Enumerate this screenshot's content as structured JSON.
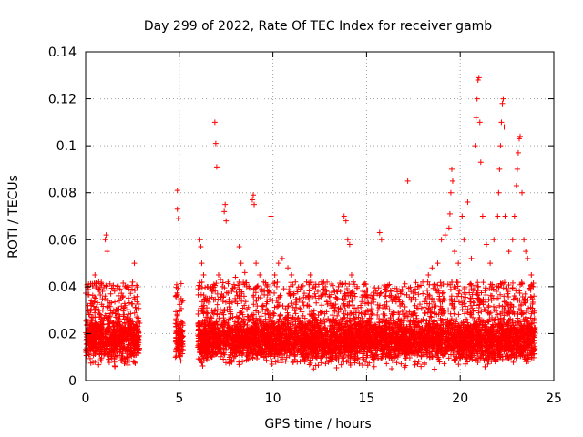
{
  "chart_data": {
    "type": "scatter",
    "title": "Day 299 of 2022, Rate Of TEC Index for receiver gamb",
    "xlabel": "GPS time / hours",
    "ylabel": "ROTI / TECUs",
    "xlim": [
      0,
      25
    ],
    "ylim": [
      0,
      0.14
    ],
    "xticks": [
      0,
      5,
      10,
      15,
      20,
      25
    ],
    "xtick_labels": [
      "0",
      "5",
      "10",
      "15",
      "20",
      "25"
    ],
    "yticks": [
      0,
      0.02,
      0.04,
      0.06,
      0.08,
      0.1,
      0.12,
      0.14
    ],
    "ytick_labels": [
      "0",
      "0.02",
      "0.04",
      "0.06",
      "0.08",
      "0.1",
      "0.12",
      "0.14"
    ],
    "grid": true,
    "marker": "+",
    "marker_color": "#ff0000",
    "series": [
      {
        "name": "ROTI",
        "dense_band": {
          "segments": [
            [
              0.0,
              2.9
            ],
            [
              4.8,
              5.2
            ],
            [
              6.0,
              24.0
            ]
          ],
          "ymin": 0.004,
          "ymax": 0.028
        },
        "points": [
          [
            0.1,
            0.03
          ],
          [
            0.3,
            0.034
          ],
          [
            0.5,
            0.045
          ],
          [
            0.7,
            0.042
          ],
          [
            0.9,
            0.038
          ],
          [
            1.05,
            0.06
          ],
          [
            1.1,
            0.062
          ],
          [
            1.15,
            0.055
          ],
          [
            1.3,
            0.033
          ],
          [
            1.5,
            0.03
          ],
          [
            1.8,
            0.034
          ],
          [
            2.0,
            0.036
          ],
          [
            2.2,
            0.04
          ],
          [
            2.3,
            0.039
          ],
          [
            2.6,
            0.05
          ],
          [
            2.7,
            0.03
          ],
          [
            4.9,
            0.081
          ],
          [
            4.9,
            0.073
          ],
          [
            4.95,
            0.069
          ],
          [
            5.0,
            0.03
          ],
          [
            5.1,
            0.025
          ],
          [
            6.1,
            0.06
          ],
          [
            6.15,
            0.057
          ],
          [
            6.2,
            0.05
          ],
          [
            6.3,
            0.045
          ],
          [
            6.5,
            0.04
          ],
          [
            6.6,
            0.035
          ],
          [
            6.8,
            0.038
          ],
          [
            6.9,
            0.11
          ],
          [
            6.95,
            0.101
          ],
          [
            7.0,
            0.091
          ],
          [
            7.1,
            0.045
          ],
          [
            7.2,
            0.043
          ],
          [
            7.3,
            0.04
          ],
          [
            7.4,
            0.072
          ],
          [
            7.45,
            0.075
          ],
          [
            7.5,
            0.068
          ],
          [
            7.6,
            0.042
          ],
          [
            7.8,
            0.038
          ],
          [
            8.0,
            0.044
          ],
          [
            8.2,
            0.057
          ],
          [
            8.3,
            0.05
          ],
          [
            8.5,
            0.046
          ],
          [
            8.6,
            0.04
          ],
          [
            8.9,
            0.077
          ],
          [
            8.95,
            0.079
          ],
          [
            9.0,
            0.075
          ],
          [
            9.1,
            0.05
          ],
          [
            9.3,
            0.045
          ],
          [
            9.5,
            0.042
          ],
          [
            9.7,
            0.04
          ],
          [
            9.9,
            0.07
          ],
          [
            10.1,
            0.045
          ],
          [
            10.3,
            0.05
          ],
          [
            10.5,
            0.052
          ],
          [
            10.8,
            0.048
          ],
          [
            11.0,
            0.045
          ],
          [
            11.2,
            0.042
          ],
          [
            11.5,
            0.04
          ],
          [
            11.8,
            0.042
          ],
          [
            12.0,
            0.045
          ],
          [
            12.2,
            0.04
          ],
          [
            12.4,
            0.038
          ],
          [
            12.6,
            0.042
          ],
          [
            12.8,
            0.04
          ],
          [
            13.0,
            0.036
          ],
          [
            13.3,
            0.038
          ],
          [
            13.5,
            0.04
          ],
          [
            13.8,
            0.07
          ],
          [
            13.9,
            0.068
          ],
          [
            14.0,
            0.06
          ],
          [
            14.1,
            0.058
          ],
          [
            14.2,
            0.045
          ],
          [
            14.3,
            0.042
          ],
          [
            14.5,
            0.04
          ],
          [
            14.8,
            0.038
          ],
          [
            15.0,
            0.036
          ],
          [
            15.3,
            0.035
          ],
          [
            15.7,
            0.063
          ],
          [
            15.8,
            0.06
          ],
          [
            16.0,
            0.04
          ],
          [
            16.3,
            0.038
          ],
          [
            16.5,
            0.035
          ],
          [
            16.8,
            0.038
          ],
          [
            17.0,
            0.04
          ],
          [
            17.2,
            0.085
          ],
          [
            17.5,
            0.038
          ],
          [
            17.8,
            0.04
          ],
          [
            18.0,
            0.042
          ],
          [
            18.3,
            0.045
          ],
          [
            18.5,
            0.048
          ],
          [
            18.8,
            0.05
          ],
          [
            19.0,
            0.06
          ],
          [
            19.2,
            0.062
          ],
          [
            19.4,
            0.065
          ],
          [
            19.45,
            0.071
          ],
          [
            19.5,
            0.08
          ],
          [
            19.55,
            0.09
          ],
          [
            19.6,
            0.085
          ],
          [
            19.7,
            0.055
          ],
          [
            19.9,
            0.05
          ],
          [
            20.1,
            0.07
          ],
          [
            20.2,
            0.06
          ],
          [
            20.4,
            0.076
          ],
          [
            20.6,
            0.052
          ],
          [
            20.8,
            0.1
          ],
          [
            20.85,
            0.112
          ],
          [
            20.9,
            0.12
          ],
          [
            20.95,
            0.128
          ],
          [
            21.0,
            0.129
          ],
          [
            21.05,
            0.11
          ],
          [
            21.1,
            0.093
          ],
          [
            21.2,
            0.07
          ],
          [
            21.4,
            0.058
          ],
          [
            21.6,
            0.05
          ],
          [
            21.8,
            0.06
          ],
          [
            22.0,
            0.07
          ],
          [
            22.05,
            0.08
          ],
          [
            22.1,
            0.09
          ],
          [
            22.15,
            0.1
          ],
          [
            22.2,
            0.11
          ],
          [
            22.25,
            0.118
          ],
          [
            22.3,
            0.12
          ],
          [
            22.35,
            0.108
          ],
          [
            22.4,
            0.07
          ],
          [
            22.6,
            0.055
          ],
          [
            22.8,
            0.06
          ],
          [
            22.9,
            0.07
          ],
          [
            23.0,
            0.083
          ],
          [
            23.05,
            0.09
          ],
          [
            23.1,
            0.097
          ],
          [
            23.15,
            0.103
          ],
          [
            23.2,
            0.104
          ],
          [
            23.3,
            0.08
          ],
          [
            23.4,
            0.06
          ],
          [
            23.5,
            0.055
          ],
          [
            23.6,
            0.052
          ],
          [
            23.8,
            0.045
          ],
          [
            23.9,
            0.04
          ]
        ]
      }
    ]
  }
}
